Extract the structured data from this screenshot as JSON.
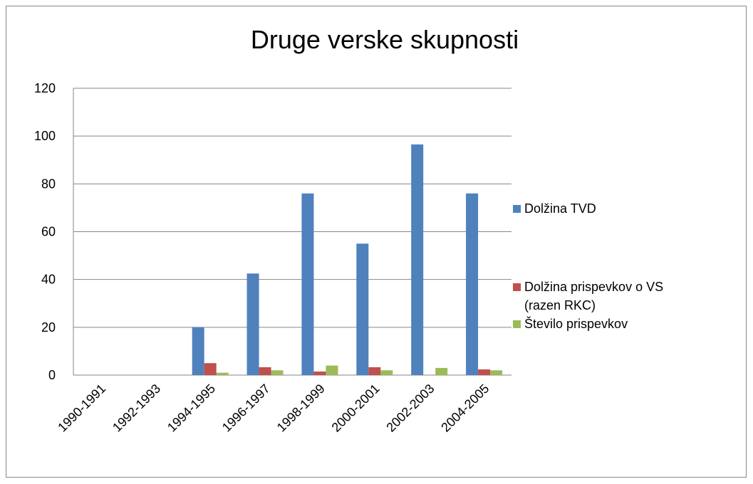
{
  "chart_data": {
    "type": "bar",
    "title": "Druge verske skupnosti",
    "categories": [
      "1990-1991",
      "1992-1993",
      "1994-1995",
      "1996-1997",
      "1998-1999",
      "2000-2001",
      "2002-2003",
      "2004-2005"
    ],
    "series": [
      {
        "name": "Dolžina TVD",
        "color": "#4f81bd",
        "values": [
          0,
          0,
          20,
          42.5,
          76,
          55,
          96.5,
          76
        ]
      },
      {
        "name": "Dolžina prispevkov o VS (razen RKC)",
        "color": "#c0504d",
        "values": [
          0,
          0,
          5,
          3.3,
          1.5,
          3.3,
          0,
          2.4
        ]
      },
      {
        "name": "Število prispevkov",
        "color": "#9bbb59",
        "values": [
          0,
          0,
          1,
          2,
          4,
          2,
          3,
          2
        ]
      }
    ],
    "ylim": [
      0,
      120
    ],
    "yticks": [
      0,
      20,
      40,
      60,
      80,
      100,
      120
    ],
    "grid": true
  }
}
